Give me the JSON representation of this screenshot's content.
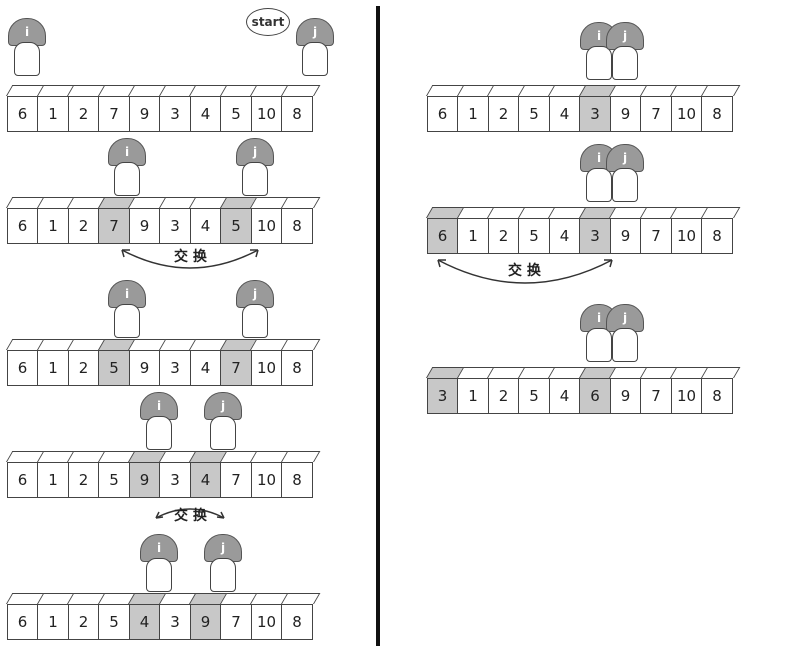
{
  "start_label": "start",
  "swap_label": "交 换",
  "pointers": {
    "i": "i",
    "j": "j"
  },
  "rows": [
    [
      "6",
      "1",
      "2",
      "7",
      "9",
      "3",
      "4",
      "5",
      "10",
      "8"
    ],
    [
      "6",
      "1",
      "2",
      "7",
      "9",
      "3",
      "4",
      "5",
      "10",
      "8"
    ],
    [
      "6",
      "1",
      "2",
      "5",
      "9",
      "3",
      "4",
      "7",
      "10",
      "8"
    ],
    [
      "6",
      "1",
      "2",
      "5",
      "9",
      "3",
      "4",
      "7",
      "10",
      "8"
    ],
    [
      "6",
      "1",
      "2",
      "5",
      "4",
      "3",
      "9",
      "7",
      "10",
      "8"
    ],
    [
      "6",
      "1",
      "2",
      "5",
      "4",
      "3",
      "9",
      "7",
      "10",
      "8"
    ],
    [
      "6",
      "1",
      "2",
      "5",
      "4",
      "3",
      "9",
      "7",
      "10",
      "8"
    ],
    [
      "3",
      "1",
      "2",
      "5",
      "4",
      "6",
      "9",
      "7",
      "10",
      "8"
    ]
  ],
  "highlight_color": "#c8c8c8"
}
